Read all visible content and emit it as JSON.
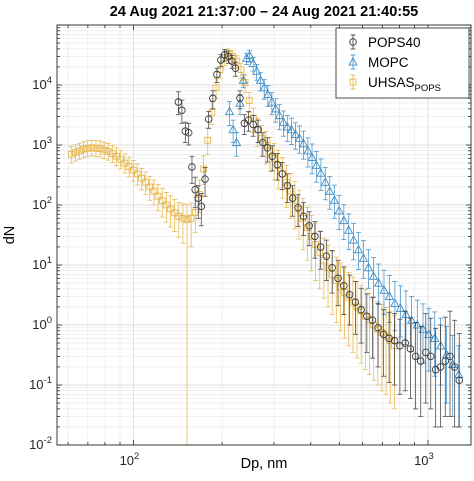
{
  "chart_data": {
    "type": "scatter",
    "title": "24 Aug 2021 21:37:00 – 24 Aug 2021 21:40:55",
    "xlabel": "Dp, nm",
    "ylabel": "dN",
    "xscale": "log",
    "yscale": "log",
    "xlim": [
      55,
      1400
    ],
    "ylim": [
      0.01,
      100000
    ],
    "xticks": [
      {
        "value": 100,
        "base": "10",
        "exp": "2"
      },
      {
        "value": 1000,
        "base": "10",
        "exp": "3"
      }
    ],
    "yticks": [
      {
        "value": 0.01,
        "base": "10",
        "exp": "-2"
      },
      {
        "value": 0.1,
        "base": "10",
        "exp": "-1"
      },
      {
        "value": 1,
        "base": "10",
        "exp": "0"
      },
      {
        "value": 10,
        "base": "10",
        "exp": "1"
      },
      {
        "value": 100,
        "base": "10",
        "exp": "2"
      },
      {
        "value": 1000,
        "base": "10",
        "exp": "3"
      },
      {
        "value": 10000,
        "base": "10",
        "exp": "4"
      }
    ],
    "grid": true,
    "legend_position": "top-right",
    "legend": [
      {
        "text": "POPS40",
        "sub": ""
      },
      {
        "text": "MOPC",
        "sub": ""
      },
      {
        "text": "UHSAS",
        "sub": "POPS"
      }
    ],
    "series": [
      {
        "name": "POPS40",
        "color": "#3a3a3a",
        "marker": "circle",
        "x": [
          142,
          146,
          150,
          154,
          158,
          162,
          166,
          170,
          175,
          180,
          186,
          192,
          198,
          204,
          210,
          216,
          222,
          230,
          238,
          246,
          255,
          265,
          275,
          285,
          296,
          308,
          320,
          333,
          347,
          362,
          378,
          395,
          413,
          432,
          452,
          473,
          495,
          518,
          542,
          567,
          593,
          620,
          648,
          677,
          707,
          738,
          770,
          803,
          837,
          872,
          908,
          945,
          983,
          1022,
          1062,
          1103,
          1145,
          1188,
          1232,
          1277
        ],
        "y": [
          5200,
          3800,
          1700,
          1600,
          430,
          180,
          130,
          95,
          270,
          2700,
          6000,
          15000,
          26000,
          32000,
          30000,
          25000,
          19000,
          6000,
          2300,
          2600,
          2200,
          1800,
          1100,
          900,
          650,
          470,
          330,
          210,
          130,
          90,
          65,
          45,
          30,
          20,
          14,
          9,
          6,
          4.5,
          3.2,
          2.4,
          1.8,
          1.4,
          1.2,
          0.9,
          0.7,
          0.6,
          0.55,
          0.45,
          0.5,
          0.4,
          0.3,
          0.25,
          0.35,
          0.3,
          0.18,
          0.2,
          0.25,
          0.3,
          0.2,
          0.12
        ],
        "err_low": [
          2000,
          1500,
          600,
          600,
          200,
          90,
          70,
          50,
          130,
          800,
          2000,
          4000,
          6000,
          7000,
          7000,
          6000,
          5000,
          2000,
          800,
          900,
          800,
          700,
          450,
          380,
          280,
          210,
          150,
          100,
          65,
          46,
          34,
          24,
          17,
          11.5,
          8.5,
          5.6,
          3.9,
          3,
          2.2,
          1.7,
          1.3,
          1.05,
          0.92,
          0.7,
          0.56,
          0.49,
          0.45,
          0.38,
          0.42,
          0.34,
          0.26,
          0.22,
          0.3,
          0.26,
          0.16,
          0.18,
          0.22,
          0.27,
          0.18,
          0.1
        ],
        "err_high": [
          2500,
          1800,
          700,
          700,
          220,
          110,
          80,
          60,
          150,
          900,
          2000,
          4000,
          6000,
          7000,
          7000,
          6000,
          5000,
          2000,
          900,
          1000,
          900,
          800,
          500,
          420,
          320,
          250,
          180,
          120,
          80,
          58,
          44,
          32,
          23,
          16,
          12,
          8.5,
          6,
          4.8,
          3.6,
          2.9,
          2.3,
          1.9,
          1.7,
          1.4,
          1.1,
          1,
          1,
          0.8,
          1.2,
          0.9,
          0.8,
          0.7,
          1.2,
          1,
          0.7,
          0.8,
          1.1,
          1.4,
          1,
          0.6
        ]
      },
      {
        "name": "MOPC",
        "color": "#3a8cc8",
        "marker": "triangle",
        "x": [
          212,
          218,
          224,
          230,
          236,
          242,
          248,
          255,
          262,
          270,
          278,
          286,
          295,
          304,
          313,
          323,
          333,
          344,
          355,
          366,
          378,
          391,
          404,
          418,
          433,
          448,
          464,
          481,
          499,
          518,
          538,
          559,
          581,
          604,
          628,
          653,
          680,
          709,
          740,
          772,
          806,
          842,
          880,
          920,
          962,
          1007,
          1054,
          1104,
          1157,
          1213,
          1272
        ],
        "y": [
          3600,
          1800,
          1100,
          5000,
          12000,
          28000,
          31000,
          23000,
          17000,
          12000,
          9000,
          7000,
          5200,
          4000,
          3100,
          2400,
          2000,
          1800,
          1500,
          1300,
          1050,
          800,
          620,
          460,
          340,
          240,
          170,
          120,
          80,
          55,
          38,
          26,
          18,
          13,
          9,
          6.5,
          5,
          3.8,
          3,
          2.3,
          1.9,
          1.5,
          1.2,
          1,
          0.85,
          0.7,
          0.6,
          0.45,
          0.32,
          0.22,
          0.15
        ],
        "err_low": [
          1500,
          700,
          450,
          1800,
          3000,
          6000,
          7000,
          6000,
          5000,
          4000,
          3200,
          2600,
          2000,
          1600,
          1300,
          1000,
          850,
          780,
          650,
          570,
          470,
          370,
          290,
          220,
          165,
          118,
          85,
          60,
          41,
          28.5,
          19.8,
          13.8,
          9.6,
          7,
          4.9,
          3.6,
          2.8,
          2.3,
          1.9,
          1.5,
          1.27,
          1.03,
          0.84,
          0.72,
          0.62,
          0.53,
          0.46,
          0.35,
          0.27,
          0.19,
          0.13
        ],
        "err_high": [
          1700,
          800,
          500,
          2000,
          3000,
          6000,
          7000,
          6000,
          5000,
          4000,
          3300,
          2800,
          2300,
          1900,
          1600,
          1300,
          1100,
          1000,
          850,
          780,
          650,
          520,
          420,
          320,
          245,
          180,
          130,
          95,
          65,
          46,
          33,
          23.5,
          17,
          12.5,
          9,
          6.8,
          5.4,
          4.4,
          3.7,
          3,
          2.6,
          2.2,
          1.8,
          1.6,
          1.4,
          1.2,
          1.05,
          0.85,
          0.62,
          0.45,
          0.3
        ]
      },
      {
        "name": "UHSAS_POPS",
        "color": "#e8b545",
        "marker": "square",
        "x": [
          61.5,
          63.5,
          65.6,
          67.7,
          69.9,
          72.2,
          74.6,
          77.0,
          79.5,
          82.1,
          84.8,
          87.6,
          90.5,
          93.5,
          96.6,
          99.8,
          103.1,
          106.5,
          110.0,
          113.6,
          117.3,
          121.2,
          125.2,
          129.3,
          133.6,
          138.0,
          142.5,
          147.2,
          152.0,
          157.0,
          162.2,
          167.5,
          173.0,
          178.7,
          184.6,
          190.7,
          197.0,
          203.5,
          210.2,
          217.1,
          224.3,
          231.7,
          239.3,
          247.2,
          255.4,
          263.8,
          272.5,
          281.5,
          290.8,
          300.4,
          310.3,
          320.5,
          331.1,
          342.0,
          353.3,
          364.9,
          376.9,
          389.3,
          402.1,
          415.4,
          429.1,
          443.2,
          457.8,
          472.9,
          488.5,
          504.6,
          521.2,
          538.4,
          556.1,
          574.4,
          593.3,
          612.9,
          633.1,
          654.0,
          675.5,
          697.8,
          720.8,
          744.5,
          769.0
        ],
        "y": [
          700,
          750,
          800,
          850,
          880,
          900,
          880,
          870,
          820,
          780,
          720,
          650,
          580,
          500,
          440,
          380,
          330,
          280,
          240,
          200,
          170,
          140,
          118,
          100,
          86,
          74,
          65,
          60,
          57,
          60,
          75,
          150,
          400,
          1200,
          3500,
          9000,
          18000,
          28000,
          33000,
          30000,
          25000,
          18000,
          11000,
          5500,
          2800,
          1800,
          1300,
          1000,
          780,
          600,
          450,
          330,
          240,
          170,
          120,
          85,
          60,
          42,
          30,
          22,
          16,
          12,
          9,
          7,
          5.5,
          4.3,
          3.5,
          2.9,
          2.4,
          2,
          1.7,
          1.4,
          1.2,
          1,
          0.85,
          0.75,
          0.65,
          0.55,
          0.45
        ],
        "err_low": [
          200,
          210,
          220,
          230,
          240,
          240,
          240,
          240,
          230,
          220,
          210,
          200,
          180,
          160,
          145,
          130,
          115,
          100,
          90,
          80,
          70,
          60,
          55,
          48,
          43,
          38,
          36,
          37,
          57,
          40,
          40,
          75,
          180,
          500,
          1300,
          3000,
          5000,
          7000,
          7000,
          7000,
          6000,
          5000,
          3500,
          2000,
          1200,
          850,
          650,
          520,
          420,
          340,
          265,
          200,
          150,
          110,
          80,
          58,
          42,
          30,
          22,
          16.5,
          12,
          9.2,
          7,
          5.5,
          4.4,
          3.5,
          2.9,
          2.45,
          2.05,
          1.72,
          1.47,
          1.22,
          1.05,
          0.88,
          0.75,
          0.67,
          0.58,
          0.5,
          0.41
        ],
        "err_high": [
          250,
          260,
          270,
          280,
          290,
          300,
          300,
          300,
          290,
          280,
          270,
          250,
          230,
          210,
          190,
          170,
          150,
          130,
          115,
          100,
          90,
          80,
          70,
          62,
          56,
          50,
          46,
          45,
          45,
          48,
          60,
          110,
          260,
          700,
          1800,
          4000,
          6000,
          7000,
          7000,
          7000,
          6000,
          5000,
          3500,
          2000,
          1300,
          1000,
          800,
          680,
          560,
          460,
          370,
          290,
          220,
          165,
          125,
          92,
          68,
          50,
          37,
          28,
          21,
          16,
          12.5,
          10,
          8,
          6.5,
          5.4,
          4.6,
          3.9,
          3.3,
          2.9,
          2.5,
          2.2,
          1.9,
          1.6,
          1.45,
          1.3,
          1.15,
          1
        ]
      }
    ]
  }
}
